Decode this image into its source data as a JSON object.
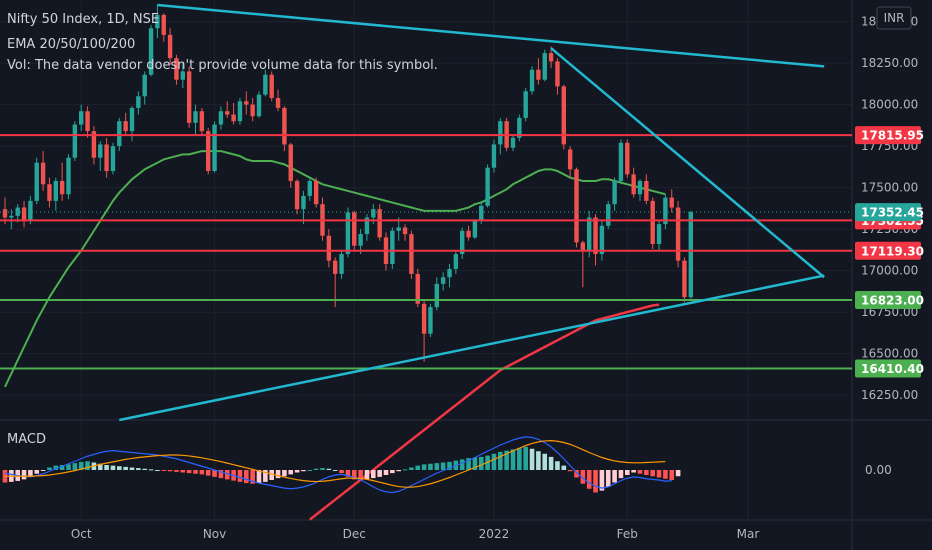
{
  "header": {
    "title": "Nifty 50 Index, 1D, NSE",
    "ema": "EMA 20/50/100/200",
    "vol": "Vol: The data vendor doesn't provide volume data for this symbol.",
    "currency": "INR"
  },
  "macd_label": "MACD",
  "colors": {
    "background": "#131722",
    "up": "#26a69a",
    "down": "#ef5350",
    "resistance": "#f23645",
    "support": "#4caf50",
    "trendline": "#22b8cf",
    "ema_green": "#4caf50",
    "ema_red": "#f23645",
    "macd": "#2962ff",
    "signal": "#ff9800"
  },
  "chart_data": [
    {
      "type": "candlestick",
      "title": "Nifty 50 Index, 1D, NSE",
      "ylim": [
        16100,
        18600
      ],
      "y_ticks": [
        {
          "value": 16250,
          "label": "16250.00"
        },
        {
          "value": 16500,
          "label": "16500.00"
        },
        {
          "value": 16750,
          "label": "16750.00"
        },
        {
          "value": 17000,
          "label": "17000.00"
        },
        {
          "value": 17250,
          "label": "17250.00"
        },
        {
          "value": 17500,
          "label": "17500.00"
        },
        {
          "value": 17750,
          "label": "17750.00"
        },
        {
          "value": 18000,
          "label": "18000.00"
        },
        {
          "value": 18250,
          "label": "18250.00"
        },
        {
          "value": 18500,
          "label": "18500.00"
        }
      ],
      "x_ticks": [
        {
          "index": 12,
          "label": "Oct"
        },
        {
          "index": 33,
          "label": "Nov"
        },
        {
          "index": 55,
          "label": "Dec"
        },
        {
          "index": 77,
          "label": "2022"
        },
        {
          "index": 98,
          "label": "Feb"
        },
        {
          "index": 117,
          "label": "Mar"
        }
      ],
      "candles": [
        [
          17370,
          17440,
          17280,
          17320
        ],
        [
          17320,
          17370,
          17250,
          17330
        ],
        [
          17330,
          17400,
          17290,
          17380
        ],
        [
          17380,
          17420,
          17260,
          17300
        ],
        [
          17300,
          17450,
          17280,
          17420
        ],
        [
          17420,
          17680,
          17400,
          17650
        ],
        [
          17650,
          17720,
          17480,
          17520
        ],
        [
          17520,
          17560,
          17380,
          17420
        ],
        [
          17420,
          17560,
          17360,
          17540
        ],
        [
          17540,
          17650,
          17420,
          17460
        ],
        [
          17460,
          17700,
          17430,
          17680
        ],
        [
          17680,
          17900,
          17660,
          17880
        ],
        [
          17880,
          18000,
          17840,
          17960
        ],
        [
          17960,
          17990,
          17800,
          17840
        ],
        [
          17840,
          17870,
          17640,
          17680
        ],
        [
          17680,
          17780,
          17600,
          17760
        ],
        [
          17760,
          17800,
          17560,
          17600
        ],
        [
          17600,
          17770,
          17580,
          17750
        ],
        [
          17750,
          17920,
          17720,
          17900
        ],
        [
          17900,
          17950,
          17820,
          17840
        ],
        [
          17840,
          17990,
          17780,
          17980
        ],
        [
          17980,
          18080,
          17940,
          18050
        ],
        [
          18050,
          18200,
          18000,
          18180
        ],
        [
          18180,
          18480,
          18170,
          18460
        ],
        [
          18460,
          18600,
          18400,
          18540
        ],
        [
          18540,
          18550,
          18380,
          18420
        ],
        [
          18420,
          18460,
          18240,
          18280
        ],
        [
          18280,
          18300,
          18120,
          18150
        ],
        [
          18150,
          18260,
          18100,
          18200
        ],
        [
          18200,
          18230,
          17860,
          17890
        ],
        [
          17890,
          18000,
          17820,
          17960
        ],
        [
          17960,
          17980,
          17820,
          17840
        ],
        [
          17840,
          17860,
          17580,
          17600
        ],
        [
          17600,
          17900,
          17590,
          17880
        ],
        [
          17880,
          17990,
          17850,
          17960
        ],
        [
          17960,
          18020,
          17920,
          17940
        ],
        [
          17940,
          18010,
          17880,
          17900
        ],
        [
          17900,
          18040,
          17880,
          18020
        ],
        [
          18020,
          18080,
          17940,
          18000
        ],
        [
          18000,
          18040,
          17900,
          17930
        ],
        [
          17930,
          18080,
          17920,
          18060
        ],
        [
          18060,
          18210,
          18050,
          18180
        ],
        [
          18180,
          18200,
          18020,
          18040
        ],
        [
          18040,
          18090,
          17960,
          17980
        ],
        [
          17980,
          17990,
          17720,
          17760
        ],
        [
          17760,
          17770,
          17500,
          17540
        ],
        [
          17540,
          17550,
          17340,
          17370
        ],
        [
          17370,
          17480,
          17280,
          17450
        ],
        [
          17450,
          17560,
          17420,
          17540
        ],
        [
          17540,
          17560,
          17380,
          17400
        ],
        [
          17400,
          17440,
          17180,
          17210
        ],
        [
          17210,
          17250,
          17020,
          17060
        ],
        [
          17060,
          17080,
          16780,
          16980
        ],
        [
          16980,
          17120,
          16950,
          17100
        ],
        [
          17100,
          17380,
          17080,
          17350
        ],
        [
          17350,
          17360,
          17120,
          17150
        ],
        [
          17150,
          17250,
          17100,
          17220
        ],
        [
          17220,
          17340,
          17180,
          17320
        ],
        [
          17320,
          17400,
          17280,
          17370
        ],
        [
          17370,
          17400,
          17180,
          17200
        ],
        [
          17200,
          17230,
          17000,
          17040
        ],
        [
          17040,
          17260,
          17010,
          17240
        ],
        [
          17240,
          17320,
          17180,
          17260
        ],
        [
          17260,
          17280,
          17180,
          17220
        ],
        [
          17220,
          17240,
          16950,
          16980
        ],
        [
          16980,
          17010,
          16780,
          16800
        ],
        [
          16800,
          16820,
          16450,
          16620
        ],
        [
          16620,
          16800,
          16600,
          16780
        ],
        [
          16780,
          16960,
          16760,
          16920
        ],
        [
          16920,
          16990,
          16880,
          16960
        ],
        [
          16960,
          17040,
          16900,
          17010
        ],
        [
          17010,
          17120,
          16980,
          17100
        ],
        [
          17100,
          17260,
          17070,
          17240
        ],
        [
          17240,
          17270,
          17180,
          17200
        ],
        [
          17200,
          17310,
          17190,
          17300
        ],
        [
          17300,
          17420,
          17280,
          17390
        ],
        [
          17390,
          17640,
          17380,
          17620
        ],
        [
          17620,
          17790,
          17590,
          17760
        ],
        [
          17760,
          17920,
          17700,
          17900
        ],
        [
          17900,
          17920,
          17720,
          17740
        ],
        [
          17740,
          17820,
          17720,
          17800
        ],
        [
          17800,
          17940,
          17780,
          17920
        ],
        [
          17920,
          18100,
          17900,
          18080
        ],
        [
          18080,
          18230,
          18060,
          18210
        ],
        [
          18210,
          18280,
          18120,
          18150
        ],
        [
          18150,
          18330,
          18140,
          18310
        ],
        [
          18310,
          18350,
          18220,
          18260
        ],
        [
          18260,
          18280,
          18060,
          18110
        ],
        [
          18110,
          18120,
          17730,
          17760
        ],
        [
          17730,
          17750,
          17560,
          17610
        ],
        [
          17610,
          17620,
          17140,
          17170
        ],
        [
          17170,
          17180,
          16900,
          17120
        ],
        [
          17120,
          17360,
          17080,
          17320
        ],
        [
          17320,
          17340,
          17030,
          17100
        ],
        [
          17100,
          17300,
          17060,
          17270
        ],
        [
          17270,
          17420,
          17250,
          17400
        ],
        [
          17400,
          17560,
          17360,
          17540
        ],
        [
          17540,
          17790,
          17520,
          17770
        ],
        [
          17770,
          17790,
          17560,
          17580
        ],
        [
          17580,
          17620,
          17440,
          17460
        ],
        [
          17460,
          17550,
          17420,
          17540
        ],
        [
          17540,
          17580,
          17400,
          17420
        ],
        [
          17420,
          17440,
          17130,
          17160
        ],
        [
          17160,
          17300,
          17120,
          17280
        ],
        [
          17280,
          17460,
          17250,
          17440
        ],
        [
          17440,
          17490,
          17350,
          17380
        ],
        [
          17380,
          17420,
          17020,
          17060
        ],
        [
          17060,
          17080,
          16810,
          16840
        ],
        [
          16840,
          17360,
          16830,
          17352.45
        ]
      ],
      "ema_50": [
        16300,
        16380,
        16460,
        16540,
        16620,
        16700,
        16770,
        16840,
        16900,
        16960,
        17020,
        17070,
        17120,
        17180,
        17240,
        17300,
        17360,
        17420,
        17470,
        17510,
        17550,
        17580,
        17610,
        17630,
        17650,
        17670,
        17680,
        17690,
        17700,
        17700,
        17710,
        17720,
        17720,
        17720,
        17720,
        17710,
        17700,
        17690,
        17670,
        17660,
        17660,
        17660,
        17660,
        17650,
        17640,
        17620,
        17600,
        17580,
        17560,
        17540,
        17520,
        17510,
        17500,
        17490,
        17480,
        17470,
        17460,
        17450,
        17440,
        17430,
        17420,
        17410,
        17400,
        17390,
        17380,
        17370,
        17360,
        17360,
        17360,
        17360,
        17360,
        17360,
        17370,
        17380,
        17400,
        17410,
        17430,
        17450,
        17470,
        17490,
        17520,
        17540,
        17560,
        17580,
        17600,
        17610,
        17610,
        17600,
        17580,
        17560,
        17550,
        17540,
        17540,
        17540,
        17550,
        17550,
        17540,
        17530,
        17520,
        17510,
        17500,
        17490,
        17480,
        17470,
        17460
      ],
      "ema_200": [
        15500,
        15530,
        15560,
        15590,
        15620,
        15650,
        15680,
        15710,
        15740,
        15770,
        15800,
        15830,
        15860,
        15890,
        15920,
        15950,
        15980,
        16010,
        16040,
        16070,
        16100,
        16130,
        16160,
        16190,
        16220,
        16250,
        16280,
        16310,
        16340,
        16370,
        16400,
        16420,
        16440,
        16460,
        16480,
        16500,
        16520,
        16540,
        16560,
        16580,
        16600,
        16620,
        16640,
        16660,
        16680,
        16700,
        16710,
        16720,
        16730,
        16740,
        16750,
        16760,
        16770,
        16780,
        16790,
        16795
      ],
      "ema_200_start": 48,
      "horizontal_levels": [
        {
          "value": 17815.95,
          "label": "17815.95",
          "role": "resistance"
        },
        {
          "value": 17302.55,
          "label": "17302.55",
          "role": "resistance"
        },
        {
          "value": 17119.3,
          "label": "17119.30",
          "role": "resistance"
        },
        {
          "value": 16823.0,
          "label": "16823.00",
          "role": "support"
        },
        {
          "value": 16410.4,
          "label": "16410.40",
          "role": "support"
        }
      ],
      "last_price": {
        "value": 17352.45,
        "label": "17352.45"
      },
      "trendlines": [
        {
          "from": {
            "index": 24,
            "value": 18600
          },
          "to": {
            "index": 129,
            "value": 18230
          }
        },
        {
          "from": {
            "index": 86,
            "value": 18340
          },
          "to": {
            "index": 129,
            "value": 16960
          }
        },
        {
          "from": {
            "index": 18,
            "value": 16100
          },
          "to": {
            "index": 129,
            "value": 16970
          }
        }
      ]
    },
    {
      "type": "histogram",
      "title": "MACD",
      "ylim": [
        -160,
        160
      ],
      "y_ticks": [
        {
          "value": 0,
          "label": "0.00"
        }
      ],
      "histogram": [
        -40,
        -38,
        -35,
        -30,
        -20,
        -12,
        -2,
        8,
        14,
        16,
        18,
        22,
        26,
        28,
        24,
        20,
        16,
        14,
        12,
        10,
        8,
        6,
        4,
        2,
        0,
        -2,
        -4,
        -6,
        -8,
        -10,
        -12,
        -14,
        -18,
        -22,
        -26,
        -30,
        -34,
        -38,
        -42,
        -44,
        -42,
        -38,
        -32,
        -26,
        -20,
        -14,
        -8,
        -4,
        0,
        4,
        6,
        4,
        0,
        -10,
        -22,
        -30,
        -34,
        -30,
        -26,
        -22,
        -16,
        -10,
        -4,
        2,
        8,
        14,
        18,
        20,
        22,
        24,
        26,
        30,
        34,
        38,
        40,
        42,
        46,
        52,
        58,
        62,
        66,
        70,
        74,
        68,
        60,
        52,
        42,
        28,
        14,
        -4,
        -24,
        -44,
        -60,
        -72,
        -66,
        -54,
        -40,
        -26,
        -16,
        -8,
        -12,
        -16,
        -20,
        -24,
        -28,
        -32,
        -20
      ],
      "macd": [
        -10,
        -14,
        -18,
        -20,
        -22,
        -18,
        -12,
        -4,
        4,
        12,
        20,
        28,
        36,
        44,
        50,
        56,
        60,
        62,
        60,
        58,
        56,
        54,
        52,
        50,
        48,
        44,
        40,
        36,
        30,
        24,
        18,
        12,
        6,
        0,
        -6,
        -12,
        -18,
        -24,
        -30,
        -36,
        -42,
        -46,
        -50,
        -54,
        -58,
        -60,
        -58,
        -54,
        -48,
        -40,
        -30,
        -22,
        -16,
        -14,
        -18,
        -24,
        -32,
        -42,
        -54,
        -64,
        -70,
        -72,
        -68,
        -60,
        -50,
        -40,
        -30,
        -20,
        -10,
        -2,
        6,
        14,
        22,
        30,
        40,
        50,
        60,
        70,
        80,
        88,
        96,
        102,
        106,
        104,
        98,
        88,
        74,
        56,
        36,
        14,
        -8,
        -26,
        -42,
        -52,
        -58,
        -54,
        -44,
        -34,
        -26,
        -22,
        -24,
        -28,
        -30,
        -32,
        -36,
        -34
      ],
      "signal": [
        -20,
        -20,
        -20,
        -20,
        -20,
        -19,
        -18,
        -16,
        -13,
        -10,
        -6,
        -2,
        3,
        8,
        13,
        18,
        22,
        26,
        30,
        34,
        37,
        40,
        42,
        44,
        46,
        47,
        48,
        48,
        47,
        45,
        42,
        39,
        35,
        31,
        27,
        22,
        17,
        12,
        7,
        2,
        -3,
        -8,
        -13,
        -18,
        -23,
        -27,
        -31,
        -34,
        -36,
        -37,
        -36,
        -34,
        -31,
        -28,
        -26,
        -26,
        -27,
        -30,
        -34,
        -39,
        -44,
        -49,
        -53,
        -55,
        -55,
        -53,
        -49,
        -44,
        -38,
        -31,
        -24,
        -16,
        -8,
        0,
        8,
        16,
        25,
        34,
        43,
        52,
        61,
        70,
        78,
        85,
        90,
        93,
        94,
        92,
        88,
        82,
        74,
        65,
        56,
        48,
        40,
        34,
        29,
        26,
        24,
        23,
        23,
        24,
        25,
        26,
        27
      ]
    }
  ]
}
